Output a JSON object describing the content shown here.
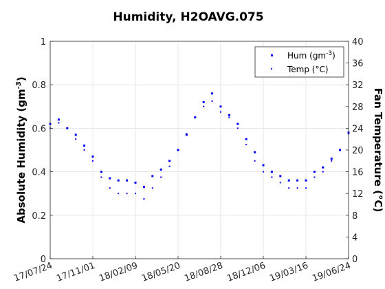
{
  "figure": {
    "title": "Humidity, H2OAVG.075"
  },
  "chart_data": {
    "type": "scatter",
    "title": "Humidity, H2OAVG.075",
    "xlabel": "",
    "ylabel_left": "Absolute Humidity (gm^-3)",
    "ylabel_right": "Fan Temperature (°C)",
    "x_ticks": [
      "17/07/24",
      "17/11/01",
      "18/02/09",
      "18/05/20",
      "18/08/28",
      "18/12/06",
      "19/03/16",
      "19/06/24"
    ],
    "xlim": [
      "17/07/24",
      "19/06/24"
    ],
    "ylim_left": [
      0,
      1
    ],
    "ylim_right": [
      0,
      40
    ],
    "y_ticks_left": [
      "0",
      "0.2",
      "0.4",
      "0.6",
      "0.8",
      "1"
    ],
    "y_ticks_right": [
      "0",
      "4",
      "8",
      "12",
      "16",
      "20",
      "24",
      "28",
      "32",
      "36",
      "40"
    ],
    "grid": true,
    "legend_placement": "top-right",
    "series": [
      {
        "name": "Hum (gm^-3)",
        "axis": "left",
        "color": "#0000ff",
        "x": [
          "17/07/24",
          "17/08/13",
          "17/09/02",
          "17/09/22",
          "17/10/12",
          "17/11/01",
          "17/11/21",
          "17/12/11",
          "17/12/31",
          "18/01/20",
          "18/02/09",
          "18/03/01",
          "18/03/21",
          "18/04/10",
          "18/04/30",
          "18/05/20",
          "18/06/09",
          "18/06/29",
          "18/07/19",
          "18/08/08",
          "18/08/28",
          "18/09/17",
          "18/10/07",
          "18/10/27",
          "18/11/16",
          "18/12/06",
          "18/12/26",
          "19/01/15",
          "19/02/04",
          "19/02/24",
          "19/03/16",
          "19/04/05",
          "19/04/25",
          "19/05/15",
          "19/06/04",
          "19/06/24"
        ],
        "values": [
          0.62,
          0.64,
          0.6,
          0.57,
          0.52,
          0.47,
          0.4,
          0.37,
          0.36,
          0.36,
          0.35,
          0.33,
          0.38,
          0.41,
          0.45,
          0.5,
          0.57,
          0.65,
          0.72,
          0.76,
          0.7,
          0.66,
          0.62,
          0.55,
          0.49,
          0.43,
          0.4,
          0.38,
          0.36,
          0.36,
          0.36,
          0.4,
          0.42,
          0.46,
          0.5,
          0.58
        ]
      },
      {
        "name": "Temp (°C)",
        "axis": "right",
        "color": "#0000ff",
        "x": [
          "17/07/24",
          "17/08/13",
          "17/09/02",
          "17/09/22",
          "17/10/12",
          "17/11/01",
          "17/11/21",
          "17/12/11",
          "17/12/31",
          "18/01/20",
          "18/02/09",
          "18/03/01",
          "18/03/21",
          "18/04/10",
          "18/04/30",
          "18/05/20",
          "18/06/09",
          "18/06/29",
          "18/07/19",
          "18/08/08",
          "18/08/28",
          "18/09/17",
          "18/10/07",
          "18/10/27",
          "18/11/16",
          "18/12/06",
          "18/12/26",
          "19/01/15",
          "19/02/04",
          "19/02/24",
          "19/03/16",
          "19/04/05",
          "19/04/25",
          "19/05/15",
          "19/06/04",
          "19/06/24"
        ],
        "values": [
          24,
          25,
          24,
          22,
          20,
          18,
          15,
          13,
          12,
          12,
          12,
          11,
          13,
          15,
          17,
          20,
          23,
          26,
          28,
          29,
          27,
          26,
          24,
          21,
          18,
          16,
          15,
          14,
          13,
          13,
          13,
          15,
          16,
          18,
          20,
          23
        ]
      }
    ]
  }
}
